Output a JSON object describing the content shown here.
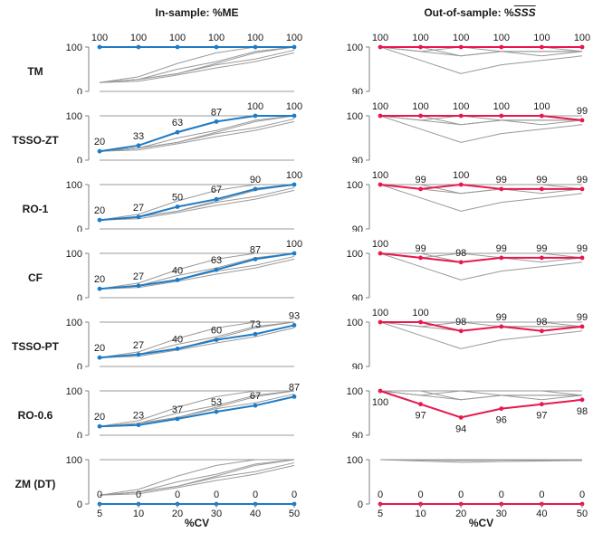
{
  "header": {
    "left_title": "In-sample: %ME",
    "right_title_prefix": "Out-of-sample: %",
    "right_title_math": "SSS"
  },
  "chart_data": {
    "type": "line",
    "layout": "small multiples: 7 method rows x 2 columns; each panel highlights one method, gray lines show all other methods",
    "x_categories": [
      5,
      10,
      20,
      30,
      40,
      50
    ],
    "xlabel": "%CV",
    "methods": [
      "TM",
      "TSSO-ZT",
      "RO-1",
      "CF",
      "TSSO-PT",
      "RO-0.6",
      "ZM (DT)"
    ],
    "columns": [
      {
        "key": "in_sample",
        "title": "In-sample: %ME",
        "highlight_color": "#1F7BC4",
        "ylim": [
          0,
          100
        ],
        "yticks": [
          100,
          0
        ],
        "label_position": "above"
      },
      {
        "key": "out_of_sample",
        "title": "Out-of-sample: %SSS",
        "highlight_color": "#E8174D",
        "ylim": [
          90,
          100
        ],
        "yticks": [
          100,
          90
        ],
        "label_position": "above"
      }
    ],
    "rows": [
      {
        "label": "TM"
      },
      {
        "label": "TSSO-ZT"
      },
      {
        "label": "RO-1"
      },
      {
        "label": "CF"
      },
      {
        "label": "TSSO-PT"
      },
      {
        "label": "RO-0.6",
        "right_label_position": "below"
      },
      {
        "label": "ZM (DT)",
        "right_ylim": [
          0,
          100
        ],
        "right_yticks": [
          100,
          0
        ]
      }
    ],
    "series": {
      "in_sample": {
        "TM": [
          100,
          100,
          100,
          100,
          100,
          100
        ],
        "TSSO-ZT": [
          20,
          33,
          63,
          87,
          100,
          100
        ],
        "RO-1": [
          20,
          27,
          50,
          67,
          90,
          100
        ],
        "CF": [
          20,
          27,
          40,
          63,
          87,
          100
        ],
        "TSSO-PT": [
          20,
          27,
          40,
          60,
          73,
          93
        ],
        "RO-0.6": [
          20,
          23,
          37,
          53,
          67,
          87
        ],
        "ZM (DT)": [
          0,
          0,
          0,
          0,
          0,
          0
        ]
      },
      "out_of_sample": {
        "TM": [
          100,
          100,
          100,
          100,
          100,
          100
        ],
        "TSSO-ZT": [
          100,
          100,
          100,
          100,
          100,
          99
        ],
        "RO-1": [
          100,
          99,
          100,
          99,
          99,
          99
        ],
        "CF": [
          100,
          99,
          98,
          99,
          99,
          99
        ],
        "TSSO-PT": [
          100,
          100,
          98,
          99,
          98,
          99
        ],
        "RO-0.6": [
          100,
          97,
          94,
          96,
          97,
          98
        ],
        "ZM (DT)": [
          0,
          0,
          0,
          0,
          0,
          0
        ]
      }
    },
    "colors": {
      "highlight_in_sample": "#1F7BC4",
      "highlight_out_of_sample": "#E8174D",
      "gray_series": "#999999",
      "axis": "#808080",
      "text": "#1A1A1A"
    }
  }
}
